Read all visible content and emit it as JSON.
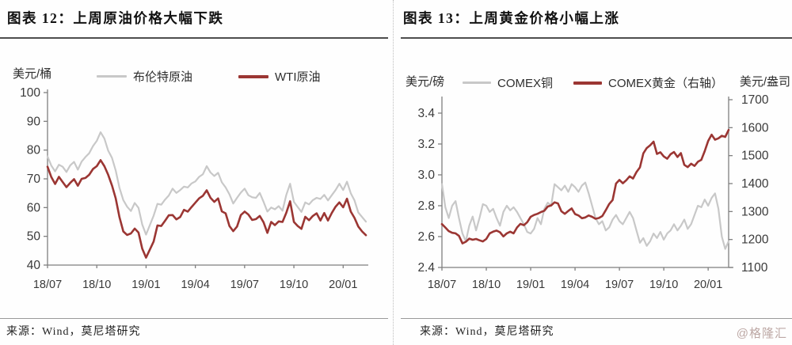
{
  "page": {
    "watermark": "@格隆汇"
  },
  "panels": [
    {
      "source": "来源：Wind，莫尼塔研究"
    },
    {
      "source": "来源：Wind，莫尼塔研究"
    }
  ],
  "chart_data": [
    {
      "type": "line",
      "title": "图表 12：上周原油价格大幅下跌",
      "ylabel_left": "美元/桶",
      "ylim_left": [
        40,
        100
      ],
      "ytick_values_left": [
        40,
        50,
        60,
        70,
        80,
        90,
        100
      ],
      "ytick_labels_left": [
        "40",
        "50",
        "60",
        "70",
        "80",
        "90",
        "100"
      ],
      "xtick_labels": [
        "18/07",
        "18/10",
        "19/01",
        "19/04",
        "19/07",
        "19/10",
        "20/01"
      ],
      "xtick_index": [
        0,
        13,
        26,
        39,
        52,
        65,
        78
      ],
      "x_description": "weekly samples, 2018-07 to 2020-02",
      "grid": false,
      "legend_position": "top",
      "axis_color": "#7f7f7f",
      "series": [
        {
          "name": "布伦特原油",
          "key": "brent-crude",
          "axis": "left",
          "color": "#c8c8c8",
          "width": 2.2,
          "values": [
            77.8,
            74.6,
            72.6,
            74.9,
            74.2,
            72.4,
            74.7,
            75.9,
            73.2,
            76.0,
            77.6,
            78.9,
            81.4,
            83.2,
            86.2,
            84.0,
            79.8,
            77.3,
            72.9,
            66.8,
            62.6,
            60.3,
            58.8,
            61.6,
            59.9,
            54.1,
            50.6,
            53.9,
            57.2,
            61.3,
            61.0,
            62.8,
            64.2,
            66.6,
            65.1,
            66.1,
            67.3,
            67.0,
            68.4,
            69.1,
            70.7,
            71.6,
            74.4,
            72.2,
            71.0,
            72.1,
            68.8,
            67.0,
            64.6,
            61.4,
            63.4,
            65.2,
            66.6,
            64.3,
            63.6,
            63.4,
            65.1,
            62.0,
            58.6,
            60.0,
            59.4,
            60.5,
            58.9,
            64.4,
            68.3,
            62.0,
            60.2,
            58.5,
            61.8,
            61.1,
            62.6,
            63.4,
            63.0,
            64.4,
            62.5,
            64.3,
            66.1,
            68.3,
            66.1,
            69.0,
            65.0,
            62.5,
            58.3,
            56.7,
            55.1
          ]
        },
        {
          "name": "WTI原油",
          "key": "wti-crude",
          "axis": "left",
          "color": "#9b3633",
          "width": 2.6,
          "values": [
            74.2,
            70.6,
            68.2,
            70.7,
            68.9,
            67.1,
            68.6,
            69.9,
            67.6,
            70.0,
            70.3,
            71.4,
            73.4,
            74.4,
            76.5,
            74.4,
            71.4,
            67.7,
            63.2,
            56.6,
            51.7,
            50.5,
            51.0,
            52.7,
            51.3,
            45.7,
            42.6,
            45.4,
            48.2,
            53.8,
            53.6,
            55.4,
            57.3,
            57.4,
            55.9,
            56.7,
            59.2,
            58.6,
            60.2,
            61.7,
            63.2,
            64.1,
            66.0,
            63.4,
            62.0,
            63.2,
            58.7,
            58.0,
            53.6,
            51.8,
            53.4,
            57.4,
            58.6,
            57.6,
            55.7,
            56.0,
            57.1,
            54.9,
            51.2,
            55.0,
            53.9,
            55.2,
            55.0,
            58.2,
            62.2,
            55.0,
            53.6,
            52.6,
            56.8,
            55.6,
            57.1,
            58.0,
            55.5,
            58.1,
            55.5,
            58.1,
            60.3,
            61.8,
            60.1,
            63.1,
            58.6,
            56.4,
            53.4,
            51.7,
            50.4
          ]
        }
      ]
    },
    {
      "type": "line",
      "title": "图表 13：上周黄金价格小幅上涨",
      "ylabel_left": "美元/磅",
      "ylabel_right": "美元/盎司",
      "ylim_left": [
        2.4,
        3.487
      ],
      "ytick_values_left": [
        2.4,
        2.6,
        2.8,
        3.0,
        3.2,
        3.4
      ],
      "ytick_labels_left": [
        "2.4",
        "2.6",
        "2.8",
        "3.0",
        "3.2",
        "3.4"
      ],
      "ylim_right": [
        1100,
        1700
      ],
      "ytick_values_right": [
        1100,
        1200,
        1300,
        1400,
        1500,
        1600,
        1700
      ],
      "ytick_labels_right": [
        "1100",
        "1200",
        "1300",
        "1400",
        "1500",
        "1600",
        "1700"
      ],
      "xtick_labels": [
        "18/07",
        "18/10",
        "19/01",
        "19/04",
        "19/07",
        "19/10",
        "20/01"
      ],
      "xtick_index": [
        0,
        13,
        26,
        39,
        52,
        65,
        78
      ],
      "x_description": "weekly samples, 2018-07 to 2020-02",
      "grid": false,
      "legend_position": "top",
      "axis_color": "#7f7f7f",
      "series": [
        {
          "name": "COMEX铜",
          "key": "comex-copper",
          "axis": "left",
          "color": "#c8c8c8",
          "width": 2.2,
          "values": [
            2.94,
            2.79,
            2.72,
            2.8,
            2.83,
            2.72,
            2.62,
            2.57,
            2.67,
            2.73,
            2.64,
            2.72,
            2.81,
            2.8,
            2.76,
            2.78,
            2.72,
            2.67,
            2.76,
            2.8,
            2.77,
            2.79,
            2.76,
            2.72,
            2.68,
            2.63,
            2.62,
            2.65,
            2.72,
            2.68,
            2.78,
            2.82,
            2.8,
            2.94,
            2.92,
            2.9,
            2.93,
            2.89,
            2.94,
            2.92,
            2.89,
            2.93,
            2.95,
            2.88,
            2.8,
            2.72,
            2.68,
            2.7,
            2.64,
            2.66,
            2.71,
            2.74,
            2.7,
            2.68,
            2.72,
            2.76,
            2.72,
            2.64,
            2.56,
            2.59,
            2.54,
            2.57,
            2.62,
            2.59,
            2.63,
            2.58,
            2.62,
            2.64,
            2.68,
            2.64,
            2.67,
            2.71,
            2.65,
            2.68,
            2.74,
            2.8,
            2.79,
            2.84,
            2.8,
            2.85,
            2.88,
            2.78,
            2.6,
            2.52,
            2.57
          ]
        },
        {
          "name": "COMEX黄金（右轴）",
          "key": "comex-gold",
          "axis": "right",
          "color": "#9b3633",
          "width": 2.6,
          "values": [
            1255,
            1243,
            1230,
            1224,
            1222,
            1213,
            1186,
            1192,
            1203,
            1199,
            1202,
            1197,
            1193,
            1202,
            1222,
            1228,
            1232,
            1226,
            1211,
            1222,
            1228,
            1222,
            1243,
            1256,
            1251,
            1262,
            1281,
            1288,
            1292,
            1298,
            1303,
            1318,
            1322,
            1333,
            1329,
            1301,
            1292,
            1302,
            1311,
            1291,
            1286,
            1276,
            1279,
            1286,
            1281,
            1274,
            1277,
            1284,
            1305,
            1327,
            1341,
            1400,
            1413,
            1401,
            1412,
            1426,
            1418,
            1441,
            1458,
            1508,
            1527,
            1537,
            1550,
            1506,
            1512,
            1497,
            1489,
            1505,
            1513,
            1495,
            1509,
            1467,
            1459,
            1471,
            1463,
            1478,
            1485,
            1516,
            1552,
            1575,
            1557,
            1562,
            1571,
            1567,
            1592
          ]
        }
      ]
    }
  ]
}
